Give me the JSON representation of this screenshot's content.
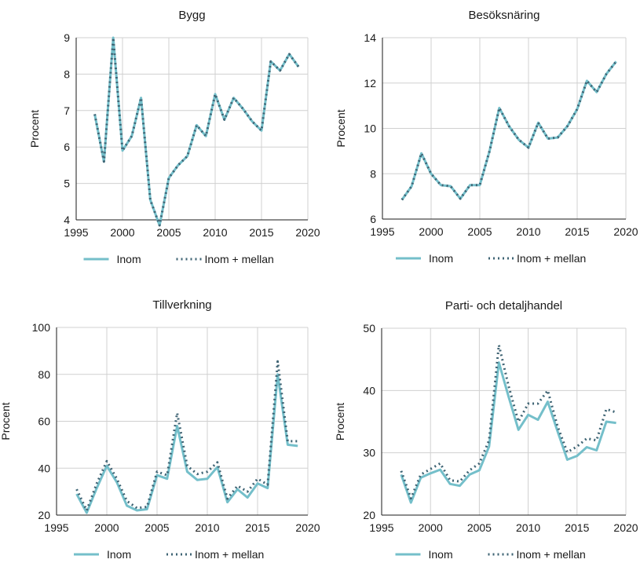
{
  "colors": {
    "inom": "#74bfca",
    "inom_mellan": "#3f6474",
    "grid": "#d0d0d0",
    "text": "#1a1a1a"
  },
  "chart_data": [
    {
      "type": "line",
      "title": "Bygg",
      "ylabel": "Procent",
      "xlim": [
        1995,
        2020
      ],
      "ylim": [
        4,
        9
      ],
      "xticks": [
        1995,
        2000,
        2005,
        2010,
        2015,
        2020
      ],
      "yticks": [
        4,
        5,
        6,
        7,
        8,
        9
      ],
      "grid": true,
      "legend": "bottom",
      "x": [
        1997,
        1998,
        1999,
        2000,
        2001,
        2002,
        2003,
        2004,
        2005,
        2006,
        2007,
        2008,
        2009,
        2010,
        2011,
        2012,
        2013,
        2014,
        2015,
        2016,
        2017,
        2018,
        2019
      ],
      "series": [
        {
          "name": "Inom",
          "values": [
            6.9,
            5.6,
            9.0,
            5.9,
            6.3,
            7.35,
            4.55,
            3.85,
            5.15,
            5.5,
            5.75,
            6.6,
            6.3,
            7.45,
            6.75,
            7.35,
            7.05,
            6.7,
            6.45,
            8.35,
            8.1,
            8.55,
            8.2
          ]
        },
        {
          "name": "Inom + mellan",
          "values": [
            6.9,
            5.6,
            9.0,
            5.9,
            6.3,
            7.35,
            4.55,
            3.85,
            5.15,
            5.5,
            5.75,
            6.6,
            6.3,
            7.45,
            6.75,
            7.35,
            7.05,
            6.7,
            6.45,
            8.35,
            8.1,
            8.55,
            8.2
          ]
        }
      ]
    },
    {
      "type": "line",
      "title": "Besöksnäring",
      "ylabel": "Procent",
      "xlim": [
        1995,
        2020
      ],
      "ylim": [
        6,
        14
      ],
      "xticks": [
        1995,
        2000,
        2005,
        2010,
        2015,
        2020
      ],
      "yticks": [
        6,
        8,
        10,
        12,
        14
      ],
      "grid": true,
      "legend": "bottom",
      "x": [
        1997,
        1998,
        1999,
        2000,
        2001,
        2002,
        2003,
        2004,
        2005,
        2006,
        2007,
        2008,
        2009,
        2010,
        2011,
        2012,
        2013,
        2014,
        2015,
        2016,
        2017,
        2018,
        2019
      ],
      "series": [
        {
          "name": "Inom",
          "values": [
            6.85,
            7.45,
            8.9,
            8.0,
            7.5,
            7.45,
            6.9,
            7.5,
            7.5,
            9.0,
            10.9,
            10.1,
            9.5,
            9.15,
            10.25,
            9.55,
            9.6,
            10.1,
            10.85,
            12.1,
            11.6,
            12.4,
            12.95
          ]
        },
        {
          "name": "Inom + mellan",
          "values": [
            6.85,
            7.45,
            8.9,
            8.0,
            7.5,
            7.45,
            6.9,
            7.5,
            7.5,
            9.0,
            10.9,
            10.1,
            9.5,
            9.15,
            10.25,
            9.55,
            9.6,
            10.1,
            10.85,
            12.1,
            11.6,
            12.4,
            12.95
          ]
        }
      ]
    },
    {
      "type": "line",
      "title": "Tillverkning",
      "ylabel": "Procent",
      "xlim": [
        1995,
        2020
      ],
      "ylim": [
        20,
        100
      ],
      "xticks": [
        1995,
        2000,
        2005,
        2010,
        2015,
        2020
      ],
      "yticks": [
        20,
        40,
        60,
        80,
        100
      ],
      "grid": true,
      "legend": "bottom",
      "x": [
        1997,
        1998,
        1999,
        2000,
        2001,
        2002,
        2003,
        2004,
        2005,
        2006,
        2007,
        2008,
        2009,
        2010,
        2011,
        2012,
        2013,
        2014,
        2015,
        2016,
        2017,
        2018,
        2019
      ],
      "series": [
        {
          "name": "Inom",
          "values": [
            29,
            21,
            31.5,
            41,
            34,
            24,
            22,
            22.5,
            37,
            35.5,
            58,
            38.5,
            35,
            35.5,
            40.5,
            25.5,
            31,
            27.5,
            33.5,
            31.5,
            80,
            50,
            49.5
          ]
        },
        {
          "name": "Inom + mellan",
          "values": [
            31,
            22,
            33.5,
            43,
            35.5,
            26,
            23,
            23.5,
            38.5,
            37,
            63.5,
            41,
            37.5,
            38.5,
            42.5,
            27,
            32.5,
            30,
            35.5,
            33,
            85.5,
            51.5,
            51.5
          ]
        }
      ]
    },
    {
      "type": "line",
      "title": "Parti- och detaljhandel",
      "ylabel": "Procent",
      "xlim": [
        1995,
        2020
      ],
      "ylim": [
        20,
        50
      ],
      "xticks": [
        1995,
        2000,
        2005,
        2010,
        2015,
        2020
      ],
      "yticks": [
        20,
        30,
        40,
        50
      ],
      "grid": true,
      "legend": "bottom",
      "x": [
        1997,
        1998,
        1999,
        2000,
        2001,
        2002,
        2003,
        2004,
        2005,
        2006,
        2007,
        2008,
        2009,
        2010,
        2011,
        2012,
        2013,
        2014,
        2015,
        2016,
        2017,
        2018,
        2019
      ],
      "series": [
        {
          "name": "Inom",
          "values": [
            26.5,
            22,
            26,
            26.7,
            27.3,
            25,
            24.7,
            26.5,
            27.2,
            31,
            44.5,
            39,
            33.7,
            36.1,
            35.3,
            38.2,
            33.5,
            28.9,
            29.5,
            30.9,
            30.4,
            35,
            34.8
          ]
        },
        {
          "name": "Inom + mellan",
          "values": [
            27.1,
            22.7,
            26.5,
            27.4,
            28.3,
            25.6,
            25.4,
            27.2,
            28.3,
            32,
            47.3,
            40.7,
            35,
            37.9,
            37.9,
            40,
            34.3,
            30.1,
            31,
            32.3,
            32,
            37,
            36.5
          ]
        }
      ]
    }
  ]
}
